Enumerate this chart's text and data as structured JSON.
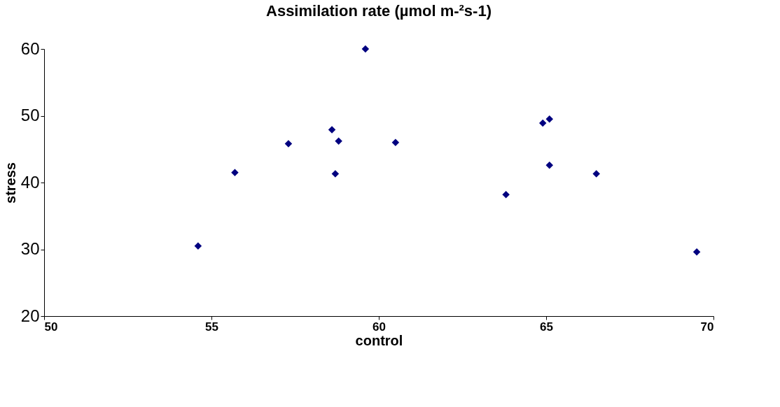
{
  "chart_data": {
    "type": "scatter",
    "title": "Assimilation rate (µmol m-²s-1)",
    "xlabel": "control",
    "ylabel": "stress",
    "x": [
      54.6,
      55.7,
      57.3,
      58.6,
      58.8,
      58.7,
      59.6,
      60.5,
      63.8,
      64.9,
      65.1,
      65.1,
      66.5,
      69.5
    ],
    "series": [
      {
        "color": "#000080",
        "values": [
          30.5,
          41.5,
          45.8,
          47.9,
          46.2,
          41.3,
          60.0,
          46.0,
          38.2,
          48.9,
          49.5,
          42.6,
          41.3,
          29.6
        ]
      }
    ],
    "xlim": [
      50,
      70
    ],
    "xticks": [
      50,
      55,
      60,
      65,
      70
    ],
    "ylim": [
      20,
      60
    ],
    "yticks": [
      20,
      30,
      40,
      50,
      60
    ],
    "marker": "diamond",
    "grid": false
  }
}
